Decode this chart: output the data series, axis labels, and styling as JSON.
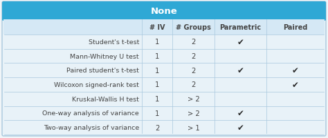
{
  "title": "None",
  "title_bg": "#2fa8d5",
  "title_color": "#ffffff",
  "header_bg": "#d5e8f5",
  "table_bg": "#e8f2f8",
  "outer_bg": "#f0f5f8",
  "border_color": "#a8c8de",
  "text_color": "#444444",
  "col_headers": [
    "# IV",
    "# Groups",
    "Parametric",
    "Paired"
  ],
  "rows": [
    {
      "name": "Student's t-test",
      "iv": "1",
      "groups": "2",
      "parametric": true,
      "paired": false
    },
    {
      "name": "Mann-Whitney U test",
      "iv": "1",
      "groups": "2",
      "parametric": false,
      "paired": false
    },
    {
      "name": "Paired student's t-test",
      "iv": "1",
      "groups": "2",
      "parametric": true,
      "paired": true
    },
    {
      "name": "Wilcoxon signed-rank test",
      "iv": "1",
      "groups": "2",
      "parametric": false,
      "paired": true
    },
    {
      "name": "Kruskal-Wallis H test",
      "iv": "1",
      "groups": "> 2",
      "parametric": false,
      "paired": false
    },
    {
      "name": "One-way analysis of variance",
      "iv": "1",
      "groups": "> 2",
      "parametric": true,
      "paired": false
    },
    {
      "name": "Two-way analysis of variance",
      "iv": "2",
      "groups": "> 1",
      "parametric": true,
      "paired": false
    }
  ],
  "checkmark": "✔",
  "figsize": [
    4.74,
    2.01
  ],
  "dpi": 100
}
